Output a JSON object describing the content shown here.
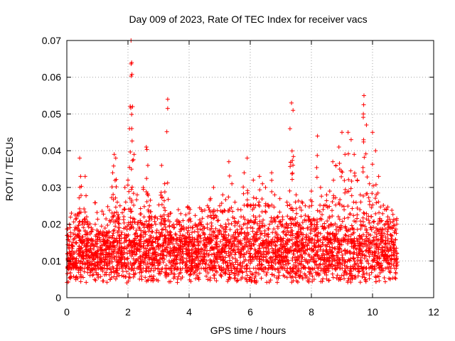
{
  "chart_data": {
    "type": "scatter",
    "title": "Day 009 of 2023, Rate Of TEC Index for receiver vacs",
    "xlabel": "GPS time / hours",
    "ylabel": "ROTI / TECUs",
    "xlim": [
      0,
      12
    ],
    "ylim": [
      0,
      0.07
    ],
    "grid": true,
    "x_ticks": [
      0,
      2,
      4,
      6,
      8,
      10,
      12
    ],
    "x_tick_labels": [
      "0",
      "2",
      "4",
      "6",
      "8",
      "10",
      "12"
    ],
    "y_ticks": [
      0,
      0.01,
      0.02,
      0.03,
      0.04,
      0.05,
      0.06,
      0.07
    ],
    "y_tick_labels": [
      "0",
      "0.01",
      "0.02",
      "0.03",
      "0.04",
      "0.05",
      "0.06",
      "0.07"
    ],
    "marker": "plus",
    "series_color": "#ff0000",
    "series": [
      {
        "name": "ROTI",
        "x": [
          0.05,
          0.1,
          0.15,
          0.2,
          0.3,
          0.4,
          0.42,
          0.45,
          0.5,
          0.6,
          0.65,
          0.7,
          0.8,
          0.9,
          1.0,
          1.1,
          1.2,
          1.3,
          1.4,
          1.5,
          1.55,
          1.6,
          1.65,
          1.7,
          1.8,
          1.9,
          2.0,
          2.05,
          2.1,
          2.12,
          2.15,
          2.2,
          2.3,
          2.4,
          2.5,
          2.6,
          2.65,
          2.7,
          2.8,
          2.9,
          3.0,
          3.1,
          3.2,
          3.3,
          3.4,
          3.5,
          3.6,
          3.7,
          3.8,
          3.9,
          4.0,
          4.1,
          4.2,
          4.3,
          4.4,
          4.5,
          4.6,
          4.7,
          4.8,
          4.9,
          5.0,
          5.1,
          5.2,
          5.3,
          5.4,
          5.5,
          5.6,
          5.7,
          5.8,
          5.9,
          6.0,
          6.1,
          6.2,
          6.3,
          6.4,
          6.5,
          6.6,
          6.7,
          6.8,
          6.9,
          7.0,
          7.1,
          7.2,
          7.3,
          7.35,
          7.4,
          7.5,
          7.6,
          7.7,
          7.8,
          7.9,
          8.0,
          8.1,
          8.2,
          8.3,
          8.4,
          8.5,
          8.6,
          8.7,
          8.8,
          8.9,
          9.0,
          9.1,
          9.2,
          9.3,
          9.4,
          9.5,
          9.6,
          9.7,
          9.72,
          9.8,
          9.9,
          10.0,
          10.1,
          10.2,
          10.3,
          10.4,
          10.5,
          10.6,
          10.7,
          10.8
        ],
        "y": [
          0.0085,
          0.012,
          0.023,
          0.015,
          0.01,
          0.018,
          0.038,
          0.033,
          0.02,
          0.033,
          0.022,
          0.015,
          0.019,
          0.014,
          0.012,
          0.018,
          0.016,
          0.015,
          0.021,
          0.034,
          0.039,
          0.038,
          0.026,
          0.017,
          0.012,
          0.03,
          0.032,
          0.046,
          0.07,
          0.064,
          0.052,
          0.039,
          0.028,
          0.021,
          0.03,
          0.041,
          0.036,
          0.025,
          0.018,
          0.022,
          0.016,
          0.036,
          0.031,
          0.054,
          0.023,
          0.019,
          0.02,
          0.018,
          0.021,
          0.015,
          0.023,
          0.014,
          0.02,
          0.017,
          0.024,
          0.019,
          0.025,
          0.027,
          0.03,
          0.022,
          0.025,
          0.028,
          0.02,
          0.037,
          0.031,
          0.026,
          0.024,
          0.022,
          0.034,
          0.038,
          0.025,
          0.032,
          0.027,
          0.033,
          0.031,
          0.03,
          0.025,
          0.034,
          0.028,
          0.022,
          0.02,
          0.018,
          0.026,
          0.046,
          0.053,
          0.051,
          0.028,
          0.02,
          0.019,
          0.025,
          0.022,
          0.029,
          0.021,
          0.044,
          0.03,
          0.025,
          0.028,
          0.029,
          0.037,
          0.036,
          0.041,
          0.045,
          0.039,
          0.045,
          0.043,
          0.039,
          0.032,
          0.028,
          0.05,
          0.055,
          0.047,
          0.031,
          0.045,
          0.04,
          0.033,
          0.021,
          0.024,
          0.022,
          0.019,
          0.015,
          0.012
        ]
      }
    ]
  }
}
